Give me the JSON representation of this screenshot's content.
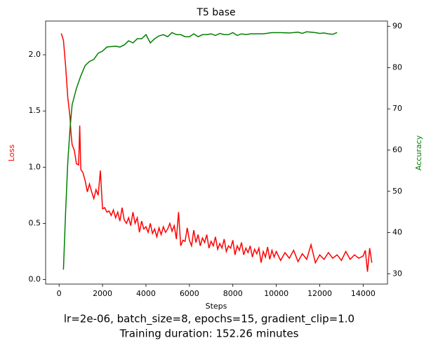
{
  "chart_data": {
    "type": "line",
    "title": "T5 base",
    "xlabel": "Steps",
    "ylabel": "Loss",
    "y2label": "Accuracy",
    "notes": [
      "lr=2e-06, batch_size=8, epochs=15, gradient_clip=1.0",
      "Training duration: 152.26 minutes"
    ],
    "xlim": [
      -620,
      15120
    ],
    "xticks": [
      0,
      2000,
      4000,
      6000,
      8000,
      10000,
      12000,
      14000
    ],
    "ylim": [
      -0.04,
      2.3
    ],
    "yticks": [
      {
        "value": 0,
        "label": "0.0"
      },
      {
        "value": 0.5,
        "label": "0.5"
      },
      {
        "value": 1,
        "label": "1.0"
      },
      {
        "value": 1.5,
        "label": "1.5"
      },
      {
        "value": 2,
        "label": "2.0"
      }
    ],
    "y2lim": [
      27.5,
      91.3
    ],
    "y2ticks": [
      30,
      40,
      50,
      60,
      70,
      80,
      90
    ],
    "series": [
      {
        "name": "Loss",
        "color": "#ff0000",
        "x": [
          100,
          200,
          300,
          400,
          500,
          550,
          600,
          700,
          800,
          900,
          950,
          1000,
          1100,
          1200,
          1300,
          1400,
          1500,
          1600,
          1700,
          1800,
          1900,
          2000,
          2100,
          2200,
          2300,
          2400,
          2500,
          2600,
          2700,
          2800,
          2900,
          3000,
          3100,
          3200,
          3300,
          3400,
          3500,
          3600,
          3700,
          3800,
          3900,
          4000,
          4100,
          4200,
          4300,
          4400,
          4500,
          4600,
          4700,
          4800,
          4900,
          5000,
          5100,
          5200,
          5300,
          5400,
          5500,
          5600,
          5700,
          5800,
          5900,
          6000,
          6100,
          6200,
          6300,
          6400,
          6500,
          6600,
          6700,
          6800,
          6900,
          7000,
          7100,
          7200,
          7300,
          7400,
          7500,
          7600,
          7700,
          7800,
          7900,
          8000,
          8100,
          8200,
          8300,
          8400,
          8500,
          8600,
          8700,
          8800,
          8900,
          9000,
          9100,
          9200,
          9300,
          9400,
          9500,
          9600,
          9700,
          9800,
          9900,
          10000,
          10200,
          10400,
          10600,
          10800,
          11000,
          11200,
          11400,
          11600,
          11800,
          12000,
          12200,
          12400,
          12600,
          12800,
          13000,
          13200,
          13400,
          13600,
          13800,
          14000,
          14100,
          14200,
          14300,
          14400
        ],
        "values": [
          2.19,
          2.13,
          1.9,
          1.62,
          1.45,
          1.3,
          1.2,
          1.15,
          1.03,
          1.02,
          1.37,
          0.98,
          0.95,
          0.88,
          0.78,
          0.85,
          0.78,
          0.72,
          0.8,
          0.75,
          0.97,
          0.63,
          0.64,
          0.6,
          0.61,
          0.57,
          0.62,
          0.55,
          0.6,
          0.52,
          0.64,
          0.53,
          0.5,
          0.55,
          0.48,
          0.6,
          0.5,
          0.55,
          0.42,
          0.52,
          0.45,
          0.47,
          0.42,
          0.5,
          0.41,
          0.45,
          0.38,
          0.46,
          0.4,
          0.47,
          0.42,
          0.45,
          0.5,
          0.43,
          0.48,
          0.36,
          0.6,
          0.3,
          0.35,
          0.34,
          0.46,
          0.35,
          0.3,
          0.44,
          0.33,
          0.4,
          0.3,
          0.37,
          0.33,
          0.4,
          0.28,
          0.34,
          0.3,
          0.38,
          0.27,
          0.32,
          0.28,
          0.36,
          0.25,
          0.3,
          0.28,
          0.35,
          0.22,
          0.3,
          0.26,
          0.33,
          0.22,
          0.28,
          0.24,
          0.3,
          0.2,
          0.27,
          0.23,
          0.28,
          0.15,
          0.25,
          0.2,
          0.29,
          0.18,
          0.26,
          0.2,
          0.25,
          0.17,
          0.24,
          0.19,
          0.26,
          0.16,
          0.23,
          0.18,
          0.31,
          0.15,
          0.22,
          0.18,
          0.24,
          0.19,
          0.22,
          0.17,
          0.25,
          0.18,
          0.22,
          0.19,
          0.21,
          0.26,
          0.07,
          0.28,
          0.15
        ]
      },
      {
        "name": "Accuracy",
        "color": "#008000",
        "axis": "y2",
        "x": [
          200,
          300,
          400,
          500,
          600,
          800,
          1000,
          1200,
          1400,
          1600,
          1800,
          2000,
          2200,
          2600,
          2800,
          3000,
          3200,
          3400,
          3600,
          3800,
          4000,
          4200,
          4400,
          4600,
          4800,
          5000,
          5200,
          5400,
          5600,
          5800,
          6000,
          6200,
          6400,
          6600,
          6800,
          7000,
          7200,
          7400,
          7600,
          7800,
          8000,
          8200,
          8400,
          8600,
          8800,
          9000,
          9400,
          9800,
          10200,
          10600,
          11000,
          11200,
          11400,
          11800,
          12000,
          12200,
          12400,
          12600,
          12800
        ],
        "values": [
          31,
          45,
          57,
          65,
          71,
          75,
          78,
          80.5,
          81.5,
          82,
          83.5,
          84,
          85,
          85.2,
          85,
          85.5,
          86.5,
          86,
          87,
          87,
          88,
          86,
          87,
          87.7,
          88,
          87.5,
          88.5,
          88,
          88,
          87.5,
          87.5,
          88.2,
          87.5,
          88,
          88,
          88.2,
          87.8,
          88.3,
          88,
          88,
          88.5,
          87.8,
          88.2,
          88,
          88.2,
          88.2,
          88.2,
          88.5,
          88.5,
          88.4,
          88.6,
          88.3,
          88.7,
          88.5,
          88.3,
          88.4,
          88.2,
          88.1,
          88.5
        ]
      }
    ]
  }
}
